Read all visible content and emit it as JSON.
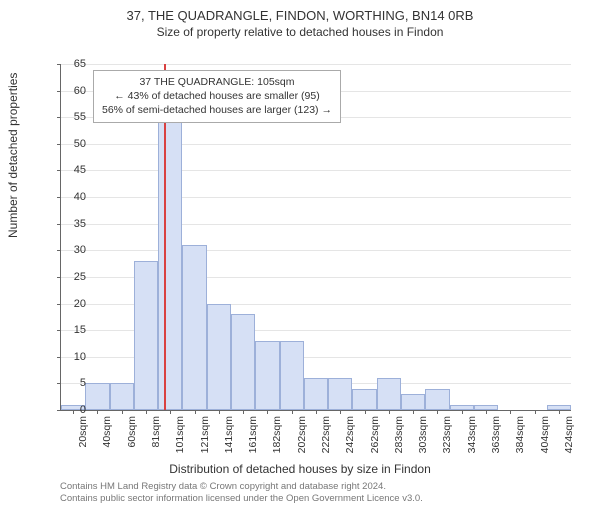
{
  "title": "37, THE QUADRANGLE, FINDON, WORTHING, BN14 0RB",
  "subtitle": "Size of property relative to detached houses in Findon",
  "ylabel": "Number of detached properties",
  "xlabel": "Distribution of detached houses by size in Findon",
  "chart": {
    "type": "histogram",
    "ylim": [
      0,
      65
    ],
    "ytick_step": 5,
    "bar_fill": "#d6e0f5",
    "bar_border": "#9db0d9",
    "grid_color": "#e5e5e5",
    "axis_color": "#666666",
    "ref_line_color": "#d94141",
    "ref_line_x_index": 4.25,
    "categories": [
      "20sqm",
      "40sqm",
      "60sqm",
      "81sqm",
      "101sqm",
      "121sqm",
      "141sqm",
      "161sqm",
      "182sqm",
      "202sqm",
      "222sqm",
      "242sqm",
      "262sqm",
      "283sqm",
      "303sqm",
      "323sqm",
      "343sqm",
      "363sqm",
      "384sqm",
      "404sqm",
      "424sqm"
    ],
    "values": [
      1,
      5,
      5,
      28,
      55,
      31,
      20,
      18,
      13,
      13,
      6,
      6,
      4,
      6,
      3,
      4,
      1,
      1,
      0,
      0,
      1
    ]
  },
  "annotation": {
    "line1": "37 THE QUADRANGLE: 105sqm",
    "line2": "← 43% of detached houses are smaller (95)",
    "line3": "56% of semi-detached houses are larger (123) →"
  },
  "footer": {
    "line1": "Contains HM Land Registry data © Crown copyright and database right 2024.",
    "line2": "Contains public sector information licensed under the Open Government Licence v3.0."
  },
  "style": {
    "title_fontsize": 13,
    "subtitle_fontsize": 12,
    "label_fontsize": 12,
    "tick_fontsize": 11,
    "annotation_fontsize": 10.5,
    "footer_fontsize": 9.5,
    "background_color": "#ffffff"
  }
}
